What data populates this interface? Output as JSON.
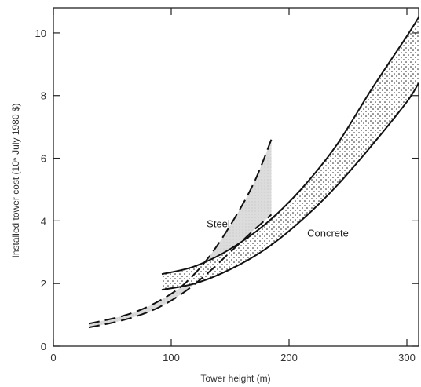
{
  "chart_data": {
    "type": "line",
    "title": "",
    "xlabel": "Tower height (m)",
    "ylabel": "Installed tower cost (10⁶ July 1980 $)",
    "xlim": [
      0,
      310
    ],
    "ylim": [
      0,
      10.8
    ],
    "x_ticks": [
      0,
      100,
      200,
      300
    ],
    "x_tick_labels": [
      "0",
      "100",
      "200",
      "300"
    ],
    "y_ticks": [
      0,
      2,
      4,
      6,
      8,
      10
    ],
    "y_tick_labels": [
      "0",
      "2",
      "4",
      "6",
      "8",
      "10"
    ],
    "grid": false,
    "series": [
      {
        "name": "Steel",
        "band": true,
        "style": "dashed",
        "upper": {
          "x": [
            30,
            50,
            70,
            90,
            110,
            130,
            150,
            170,
            185
          ],
          "y": [
            0.72,
            0.88,
            1.1,
            1.45,
            1.95,
            2.75,
            3.85,
            5.2,
            6.6
          ]
        },
        "lower": {
          "x": [
            30,
            50,
            70,
            90,
            110,
            130,
            150,
            170,
            185
          ],
          "y": [
            0.6,
            0.75,
            0.95,
            1.25,
            1.7,
            2.3,
            3.0,
            3.7,
            4.2
          ]
        }
      },
      {
        "name": "Concrete",
        "band": true,
        "style": "solid",
        "upper": {
          "x": [
            92,
            120,
            150,
            180,
            210,
            240,
            270,
            300,
            310
          ],
          "y": [
            2.3,
            2.55,
            3.1,
            3.9,
            5.0,
            6.4,
            8.2,
            9.9,
            10.5
          ]
        },
        "lower": {
          "x": [
            92,
            120,
            150,
            180,
            210,
            240,
            270,
            300,
            310
          ],
          "y": [
            1.8,
            2.0,
            2.45,
            3.1,
            4.0,
            5.1,
            6.4,
            7.8,
            8.4
          ]
        }
      }
    ],
    "annotations": [
      {
        "text": "Steel",
        "x": 140,
        "y": 3.8
      },
      {
        "text": "Concrete",
        "x": 233,
        "y": 3.5
      }
    ]
  }
}
